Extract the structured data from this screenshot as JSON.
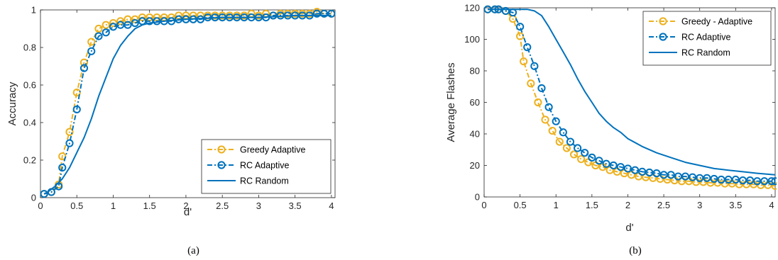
{
  "colors": {
    "greedy": "#EDB120",
    "rc": "#0072BD",
    "axis": "#262626"
  },
  "chart_data": [
    {
      "type": "line",
      "caption": "(a)",
      "xlabel": "d'",
      "ylabel": "Accuracy",
      "xlim": [
        0,
        4.05
      ],
      "ylim": [
        0,
        1
      ],
      "xticks": [
        0,
        0.5,
        1,
        1.5,
        2,
        2.5,
        3,
        3.5,
        4
      ],
      "yticks": [
        0,
        0.2,
        0.4,
        0.6,
        0.8,
        1
      ],
      "xtick_labels": [
        "0",
        "0.5",
        "1",
        "1.5",
        "2",
        "2.5",
        "3",
        "3.5",
        "4"
      ],
      "ytick_labels": [
        "0",
        "0.2",
        "0.4",
        "0.6",
        "0.8",
        "1"
      ],
      "grid": false,
      "legend_position": "bottom-right",
      "series": [
        {
          "name": "Greedy Adaptive",
          "style": "dash-dot-circle",
          "color": "#EDB120",
          "x": [
            0.05,
            0.15,
            0.25,
            0.3,
            0.4,
            0.5,
            0.6,
            0.7,
            0.8,
            0.9,
            1.0,
            1.1,
            1.2,
            1.3,
            1.4,
            1.5,
            1.6,
            1.7,
            1.8,
            1.9,
            2.0,
            2.1,
            2.2,
            2.3,
            2.4,
            2.5,
            2.6,
            2.7,
            2.8,
            2.9,
            3.0,
            3.1,
            3.2,
            3.3,
            3.4,
            3.5,
            3.6,
            3.7,
            3.8,
            3.9,
            4.0
          ],
          "y": [
            0.02,
            0.03,
            0.07,
            0.22,
            0.35,
            0.56,
            0.72,
            0.83,
            0.9,
            0.92,
            0.93,
            0.94,
            0.95,
            0.95,
            0.96,
            0.96,
            0.96,
            0.96,
            0.96,
            0.97,
            0.97,
            0.97,
            0.97,
            0.97,
            0.97,
            0.97,
            0.97,
            0.97,
            0.97,
            0.98,
            0.97,
            0.98,
            0.97,
            0.98,
            0.98,
            0.98,
            0.98,
            0.98,
            0.99,
            0.98,
            0.98
          ]
        },
        {
          "name": "RC Adaptive",
          "style": "dash-dot-circle",
          "color": "#0072BD",
          "x": [
            0.05,
            0.15,
            0.25,
            0.3,
            0.4,
            0.5,
            0.6,
            0.7,
            0.8,
            0.9,
            1.0,
            1.1,
            1.2,
            1.3,
            1.4,
            1.5,
            1.6,
            1.7,
            1.8,
            1.9,
            2.0,
            2.1,
            2.2,
            2.3,
            2.4,
            2.5,
            2.6,
            2.7,
            2.8,
            2.9,
            3.0,
            3.1,
            3.2,
            3.3,
            3.4,
            3.5,
            3.6,
            3.7,
            3.8,
            3.9,
            4.0
          ],
          "y": [
            0.02,
            0.03,
            0.06,
            0.16,
            0.29,
            0.47,
            0.69,
            0.78,
            0.86,
            0.88,
            0.91,
            0.92,
            0.92,
            0.93,
            0.94,
            0.94,
            0.94,
            0.94,
            0.94,
            0.95,
            0.95,
            0.95,
            0.95,
            0.96,
            0.96,
            0.96,
            0.96,
            0.96,
            0.96,
            0.96,
            0.96,
            0.96,
            0.97,
            0.97,
            0.97,
            0.97,
            0.97,
            0.97,
            0.98,
            0.98,
            0.98
          ]
        },
        {
          "name": "RC Random",
          "style": "solid",
          "color": "#0072BD",
          "x": [
            0.05,
            0.1,
            0.2,
            0.3,
            0.4,
            0.5,
            0.6,
            0.7,
            0.8,
            0.9,
            1.0,
            1.1,
            1.2,
            1.3,
            1.4,
            1.5,
            1.7,
            2.0,
            2.5,
            3.0,
            3.5,
            4.0
          ],
          "y": [
            0.02,
            0.03,
            0.06,
            0.1,
            0.16,
            0.24,
            0.32,
            0.42,
            0.54,
            0.64,
            0.74,
            0.81,
            0.86,
            0.9,
            0.92,
            0.93,
            0.94,
            0.95,
            0.96,
            0.96,
            0.97,
            0.97
          ]
        }
      ]
    },
    {
      "type": "line",
      "caption": "(b)",
      "xlabel": "d'",
      "ylabel": "Average Flashes",
      "xlim": [
        0,
        4.05
      ],
      "ylim": [
        0,
        120
      ],
      "xticks": [
        0,
        0.5,
        1,
        1.5,
        2,
        2.5,
        3,
        3.5,
        4
      ],
      "yticks": [
        0,
        20,
        40,
        60,
        80,
        100,
        120
      ],
      "xtick_labels": [
        "0",
        "0.5",
        "1",
        "1.5",
        "2",
        "2.5",
        "3",
        "3.5",
        "4"
      ],
      "ytick_labels": [
        "0",
        "20",
        "40",
        "60",
        "80",
        "100",
        "120"
      ],
      "grid": false,
      "legend_position": "top-right",
      "series": [
        {
          "name": "Greedy - Adaptive",
          "style": "dash-dot-circle",
          "color": "#EDB120",
          "x": [
            0.05,
            0.15,
            0.2,
            0.3,
            0.4,
            0.5,
            0.55,
            0.65,
            0.75,
            0.85,
            0.95,
            1.05,
            1.15,
            1.25,
            1.35,
            1.45,
            1.55,
            1.65,
            1.75,
            1.85,
            1.95,
            2.05,
            2.15,
            2.25,
            2.35,
            2.45,
            2.55,
            2.65,
            2.75,
            2.85,
            2.95,
            3.05,
            3.15,
            3.25,
            3.35,
            3.45,
            3.55,
            3.65,
            3.75,
            3.85,
            3.95,
            4.05
          ],
          "y": [
            119,
            119,
            119,
            118,
            113,
            102,
            86,
            72,
            60,
            49,
            42,
            35,
            31,
            27,
            24,
            22,
            20,
            19,
            17,
            16,
            15,
            14,
            13,
            12.5,
            12,
            11.5,
            11,
            10.5,
            10,
            10,
            9.5,
            9.5,
            9,
            9,
            8.5,
            8.5,
            8,
            8,
            8,
            7.5,
            7.5,
            7
          ]
        },
        {
          "name": "RC Adaptive",
          "style": "dash-dot-circle",
          "color": "#0072BD",
          "x": [
            0.05,
            0.15,
            0.2,
            0.3,
            0.4,
            0.5,
            0.6,
            0.7,
            0.8,
            0.9,
            1.0,
            1.1,
            1.2,
            1.3,
            1.4,
            1.5,
            1.6,
            1.7,
            1.8,
            1.9,
            2.0,
            2.1,
            2.2,
            2.3,
            2.4,
            2.5,
            2.6,
            2.7,
            2.8,
            2.9,
            3.0,
            3.1,
            3.2,
            3.3,
            3.4,
            3.5,
            3.6,
            3.7,
            3.8,
            3.9,
            4.0,
            4.05
          ],
          "y": [
            119,
            119,
            119,
            118,
            117,
            108,
            95,
            83,
            69,
            57,
            48,
            41,
            35,
            31,
            28,
            25,
            23,
            21,
            20,
            19,
            18,
            17,
            16,
            15.5,
            15,
            14,
            14,
            13,
            13,
            12.5,
            12,
            12,
            11.5,
            11,
            11,
            11,
            10.5,
            10.5,
            10,
            10,
            10,
            10
          ]
        },
        {
          "name": "RC Random",
          "style": "solid",
          "color": "#0072BD",
          "x": [
            0.05,
            0.2,
            0.4,
            0.5,
            0.6,
            0.7,
            0.8,
            0.9,
            1.0,
            1.1,
            1.2,
            1.3,
            1.4,
            1.5,
            1.6,
            1.7,
            1.8,
            1.9,
            2.0,
            2.2,
            2.4,
            2.6,
            2.8,
            3.0,
            3.2,
            3.4,
            3.6,
            3.8,
            4.05
          ],
          "y": [
            119,
            119,
            119,
            119,
            119,
            118,
            115,
            108,
            100,
            92,
            84,
            75,
            67,
            60,
            53,
            48,
            44,
            41,
            37,
            32,
            28,
            25,
            22,
            20,
            18,
            17,
            16,
            15,
            14
          ]
        }
      ]
    }
  ]
}
